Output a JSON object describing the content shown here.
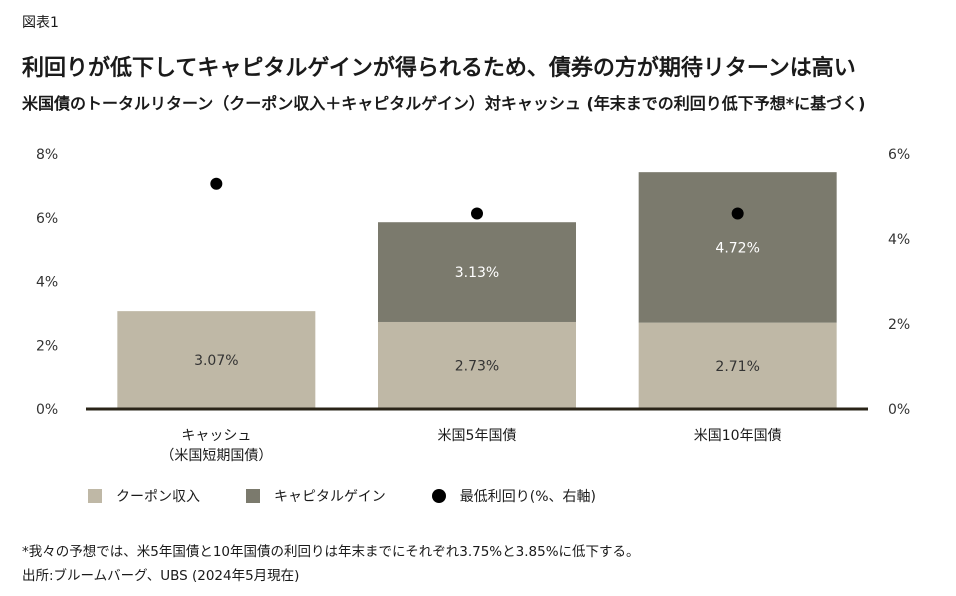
{
  "figure_label": "図表1",
  "title": "利回りが低下してキャピタルゲインが得られるため、債券の方が期待リターンは高い",
  "subtitle": "米国債のトータルリターン（クーポン収入＋キャピタルゲイン）対キャッシュ (年末までの利回り低下予想*に基づく)",
  "footnote": "*我々の予想では、米5年国債と10年国債の利回りは年末までにそれぞれ3.75%と3.85%に低下する。",
  "source": "出所:ブルームバーグ、UBS (2024年5月現在)",
  "chart_data": {
    "type": "bar",
    "stacked": true,
    "categories": [
      [
        "キャッシュ",
        "（米国短期国債）"
      ],
      [
        "米国5年国債"
      ],
      [
        "米国10年国債"
      ]
    ],
    "series": [
      {
        "name": "クーポン収入",
        "values": [
          3.07,
          2.73,
          2.71
        ],
        "color": "#bfb8a6",
        "label_color": "#333333",
        "labels": [
          "3.07%",
          "2.73%",
          "2.71%"
        ]
      },
      {
        "name": "キャピタルゲイン",
        "values": [
          0,
          3.13,
          4.72
        ],
        "color": "#7b7a6d",
        "label_color": "#ffffff",
        "labels": [
          "",
          "3.13%",
          "4.72%"
        ]
      }
    ],
    "right_axis_series": {
      "name": "最低利回り(%、右軸)",
      "values": [
        5.3,
        4.6,
        4.6
      ],
      "color": "#000000",
      "marker": "dot"
    },
    "y_left": {
      "ylim": [
        0,
        8
      ],
      "ticks": [
        "0%",
        "2%",
        "4%",
        "6%",
        "8%"
      ]
    },
    "y_right": {
      "ylim": [
        0,
        6
      ],
      "ticks": [
        "0%",
        "2%",
        "4%",
        "6%"
      ]
    },
    "grid": false,
    "legend_position": "bottom-left"
  }
}
